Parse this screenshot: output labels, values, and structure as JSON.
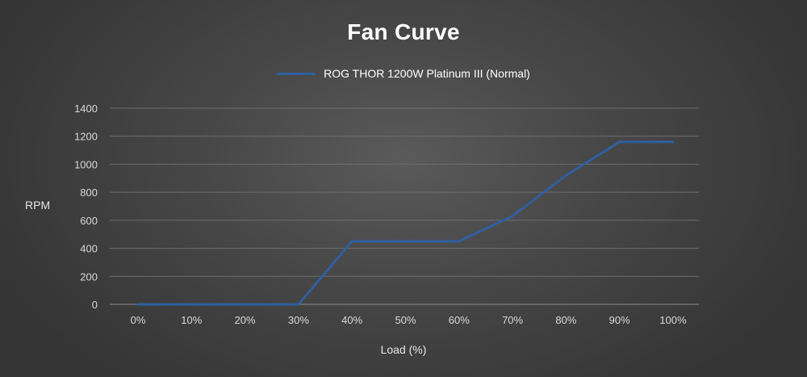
{
  "chart_data": {
    "type": "line",
    "title": "Fan Curve",
    "xlabel": "Load (%)",
    "ylabel": "RPM",
    "categories": [
      "0%",
      "10%",
      "20%",
      "30%",
      "40%",
      "50%",
      "60%",
      "70%",
      "80%",
      "90%",
      "100%"
    ],
    "series": [
      {
        "name": "ROG THOR 1200W Platinum III (Normal)",
        "color": "#2f5f9f",
        "values": [
          0,
          0,
          0,
          0,
          450,
          450,
          450,
          630,
          920,
          1160,
          1160
        ]
      }
    ],
    "ylim": [
      0,
      1400
    ],
    "yticks": [
      0,
      200,
      400,
      600,
      800,
      1000,
      1200,
      1400
    ],
    "grid": true,
    "legend_position": "top-center"
  }
}
